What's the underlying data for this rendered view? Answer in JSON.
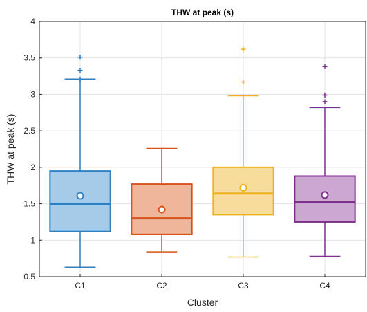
{
  "chart_data": {
    "type": "box",
    "title": "THW at peak (s)",
    "xlabel": "Cluster",
    "ylabel": "THW at peak (s)",
    "ylim": [
      0.5,
      4
    ],
    "yticks": [
      "0.5",
      "1",
      "1.5",
      "2",
      "2.5",
      "3",
      "3.5",
      "4"
    ],
    "ytick_values": [
      0.5,
      1,
      1.5,
      2,
      2.5,
      3,
      3.5,
      4
    ],
    "grid": true,
    "categories": [
      "C1",
      "C2",
      "C3",
      "C4"
    ],
    "series": [
      {
        "category": "C1",
        "color": "#2f7fc1",
        "fill": "#a6cbe9",
        "whisker_low": 0.63,
        "q1": 1.12,
        "median": 1.5,
        "q3": 1.95,
        "whisker_high": 3.21,
        "mean": 1.61,
        "outliers": [
          3.21,
          3.33,
          3.51
        ]
      },
      {
        "category": "C2",
        "color": "#d95319",
        "fill": "#f0b69b",
        "whisker_low": 0.84,
        "q1": 1.08,
        "median": 1.3,
        "q3": 1.77,
        "whisker_high": 2.26,
        "mean": 1.42,
        "outliers": []
      },
      {
        "category": "C3",
        "color": "#edb120",
        "fill": "#f8dc9c",
        "whisker_low": 0.77,
        "q1": 1.35,
        "median": 1.64,
        "q3": 2.0,
        "whisker_high": 2.98,
        "mean": 1.72,
        "outliers": [
          3.17,
          3.62
        ]
      },
      {
        "category": "C4",
        "color": "#7e2f8e",
        "fill": "#cba7d2",
        "whisker_low": 0.78,
        "q1": 1.25,
        "median": 1.52,
        "q3": 1.88,
        "whisker_high": 2.82,
        "mean": 1.62,
        "outliers": [
          2.9,
          2.99,
          3.38
        ]
      }
    ]
  }
}
